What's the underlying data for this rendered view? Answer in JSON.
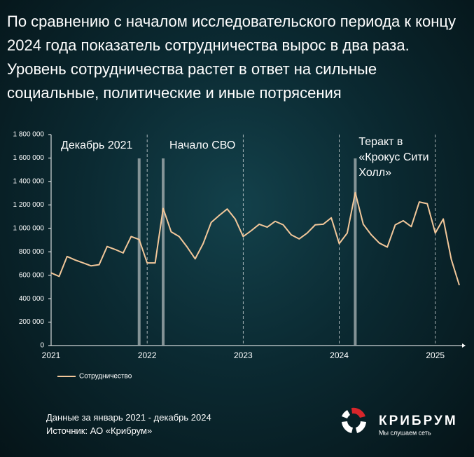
{
  "chart_data": {
    "type": "line",
    "title": "По сравнению с началом исследовательского периода к концу 2024 года показатель сотрудничества вырос в два раза. Уровень сотрудничества растет в ответ на сильные социальные, политические и иные потрясения",
    "categories": [
      "2021",
      null,
      null,
      null,
      null,
      null,
      null,
      null,
      null,
      null,
      null,
      null,
      "2022",
      null,
      null,
      null,
      null,
      null,
      null,
      null,
      null,
      null,
      null,
      null,
      "2023",
      null,
      null,
      null,
      null,
      null,
      null,
      null,
      null,
      null,
      null,
      null,
      "2024",
      null,
      null,
      null,
      null,
      null,
      null,
      null,
      null,
      null,
      null,
      null,
      "2025",
      null,
      null,
      null
    ],
    "series": [
      {
        "name": "Сотрудничество",
        "color": "#f2c79a",
        "values": [
          620000,
          590000,
          760000,
          730000,
          705000,
          680000,
          690000,
          845000,
          820000,
          790000,
          930000,
          905000,
          705000,
          705000,
          1170000,
          970000,
          930000,
          840000,
          740000,
          870000,
          1050000,
          1110000,
          1165000,
          1080000,
          930000,
          980000,
          1035000,
          1010000,
          1060000,
          1030000,
          945000,
          910000,
          960000,
          1030000,
          1035000,
          1090000,
          870000,
          960000,
          1305000,
          1035000,
          945000,
          875000,
          840000,
          1030000,
          1065000,
          1015000,
          1225000,
          1210000,
          960000,
          1080000,
          735000,
          515000
        ]
      }
    ],
    "ylim": [
      0,
      1800000
    ],
    "yticks": [
      0,
      {
        "value": 200000,
        "label": "200 000"
      },
      {
        "value": 400000,
        "label": "400 000"
      },
      {
        "value": 600000,
        "label": "600 000"
      },
      {
        "value": 800000,
        "label": "800 000"
      },
      {
        "value": 1000000,
        "label": "1 000 000"
      },
      {
        "value": 1200000,
        "label": "1 200 000"
      },
      {
        "value": 1400000,
        "label": "1 400 000"
      },
      {
        "value": 1600000,
        "label": "1 600 000"
      },
      {
        "value": 1800000,
        "label": "1 800 000"
      }
    ],
    "annotations": [
      {
        "text": "Декабрь 2021",
        "category_index": 11
      },
      {
        "text": "Начало СВО",
        "category_index": 14
      },
      {
        "text": "Теракт в «Крокус Сити Холл»",
        "category_index": 38
      }
    ],
    "footnotes": [
      "Данные за январь 2021  - декабрь 2024",
      "Источник: АО «Крибрум»"
    ]
  },
  "logo": {
    "name": "КРИБРУМ",
    "slogan": "Мы слушаем сеть"
  }
}
